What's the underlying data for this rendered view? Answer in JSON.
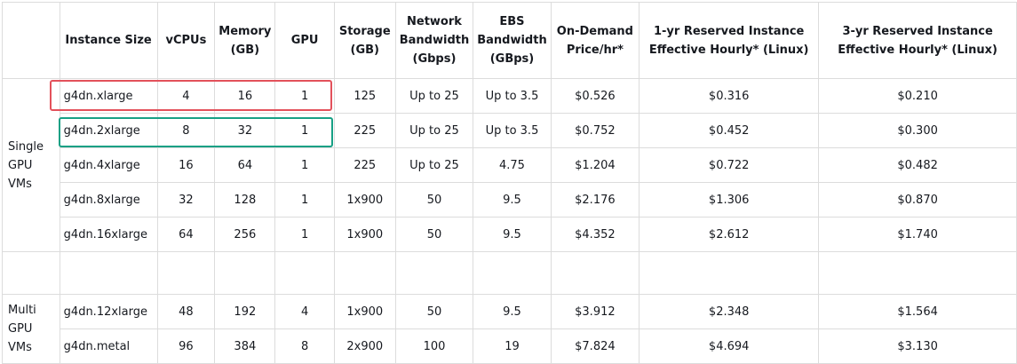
{
  "headers": [
    "",
    "Instance Size",
    "vCPUs",
    "Memory\n(GB)",
    "GPU",
    "Storage\n(GB)",
    "Network\nBandwidth\n(Gbps)",
    "EBS\nBandwidth\n(GBps)",
    "On-Demand\nPrice/hr*",
    "1-yr Reserved Instance\nEffective Hourly* (Linux)",
    "3-yr Reserved Instance\nEffective Hourly* (Linux)"
  ],
  "single_group_label": "Single\nGPU\nVMs",
  "multi_group_label": "Multi\nGPU\nVMs",
  "single_rows": [
    [
      "g4dn.xlarge",
      "4",
      "16",
      "1",
      "125",
      "Up to 25",
      "Up to 3.5",
      "$0.526",
      "$0.316",
      "$0.210"
    ],
    [
      "g4dn.2xlarge",
      "8",
      "32",
      "1",
      "225",
      "Up to 25",
      "Up to 3.5",
      "$0.752",
      "$0.452",
      "$0.300"
    ],
    [
      "g4dn.4xlarge",
      "16",
      "64",
      "1",
      "225",
      "Up to 25",
      "4.75",
      "$1.204",
      "$0.722",
      "$0.482"
    ],
    [
      "g4dn.8xlarge",
      "32",
      "128",
      "1",
      "1x900",
      "50",
      "9.5",
      "$2.176",
      "$1.306",
      "$0.870"
    ],
    [
      "g4dn.16xlarge",
      "64",
      "256",
      "1",
      "1x900",
      "50",
      "9.5",
      "$4.352",
      "$2.612",
      "$1.740"
    ]
  ],
  "multi_rows": [
    [
      "g4dn.12xlarge",
      "48",
      "192",
      "4",
      "1x900",
      "50",
      "9.5",
      "$3.912",
      "$2.348",
      "$1.564"
    ],
    [
      "g4dn.metal",
      "96",
      "384",
      "8",
      "2x900",
      "100",
      "19",
      "$7.824",
      "$4.694",
      "$3.130"
    ]
  ],
  "highlights": {
    "red_color": "#e3515b",
    "green_color": "#17a085"
  }
}
